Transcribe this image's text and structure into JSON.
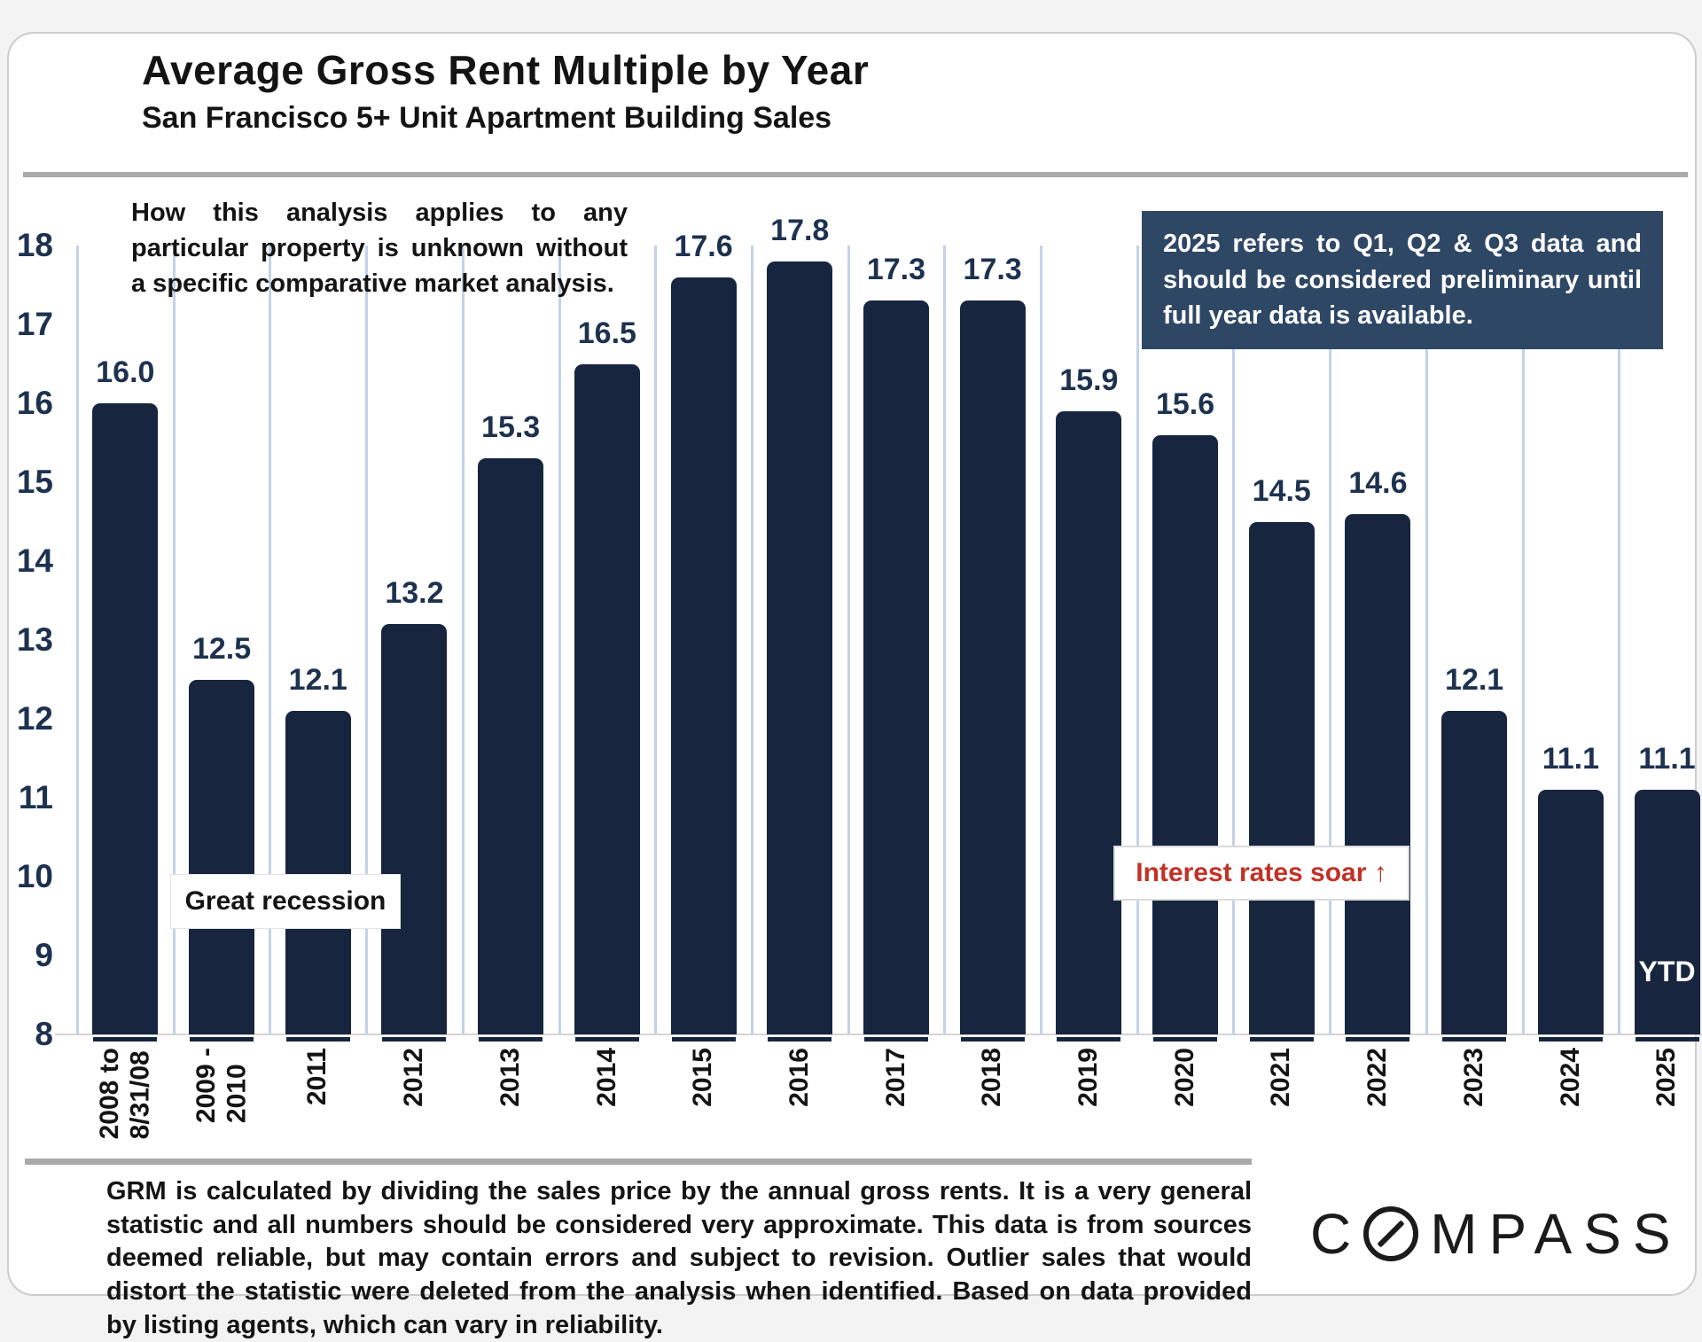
{
  "header": {
    "title": "Average Gross Rent Multiple by Year",
    "subtitle": "San Francisco 5+ Unit Apartment Building Sales"
  },
  "chart_data": {
    "type": "bar",
    "title": "Average Gross Rent Multiple by Year",
    "subtitle": "San Francisco 5+ Unit Apartment Building Sales",
    "categories": [
      "2008 to\n8/31/08",
      "2009 -\n2010",
      "2011",
      "2012",
      "2013",
      "2014",
      "2015",
      "2016",
      "2017",
      "2018",
      "2019",
      "2020",
      "2021",
      "2022",
      "2023",
      "2024",
      "2025"
    ],
    "values": [
      16.0,
      12.5,
      12.1,
      13.2,
      15.3,
      16.5,
      17.6,
      17.8,
      17.3,
      17.3,
      15.9,
      15.6,
      14.5,
      14.6,
      12.1,
      11.1,
      11.1
    ],
    "value_label_decimals": 1,
    "xlabel": "",
    "ylabel": "",
    "ylim": [
      8,
      18
    ],
    "y_ticks": [
      8,
      9,
      10,
      11,
      12,
      13,
      14,
      15,
      16,
      17,
      18
    ],
    "gridlines": "vertical",
    "legend": "none",
    "colors": {
      "bar": "#17263e",
      "data_label": "#1d324f",
      "axis_label": "#1d324f",
      "gridline": "#c3d2e8",
      "note_box_bg": "#2e4765",
      "note_box_text": "#ffffff",
      "alert_red": "#c13127"
    }
  },
  "annotations": {
    "analysis_note": "How this analysis applies to any particular property is unknown without a specific comparative market analysis.",
    "preliminary_note": "2025 refers to Q1, Q2 & Q3 data and should be considered preliminary until full year data is available.",
    "great_recession": "Great recession",
    "interest_rates": "Interest rates soar ↑",
    "ytd": "YTD"
  },
  "footer": {
    "disclaimer": "GRM is calculated by dividing the sales price by the annual gross rents. It is a very general statistic and all numbers should be considered very approximate. This data is from sources deemed reliable, but may contain errors and subject to revision. Outlier sales that would distort the statistic were deleted from the analysis when identified. Based on data provided by listing agents, which can vary in reliability.",
    "logo": {
      "text": "COMPASS",
      "prefix": "C",
      "suffix": "MPASS"
    }
  }
}
